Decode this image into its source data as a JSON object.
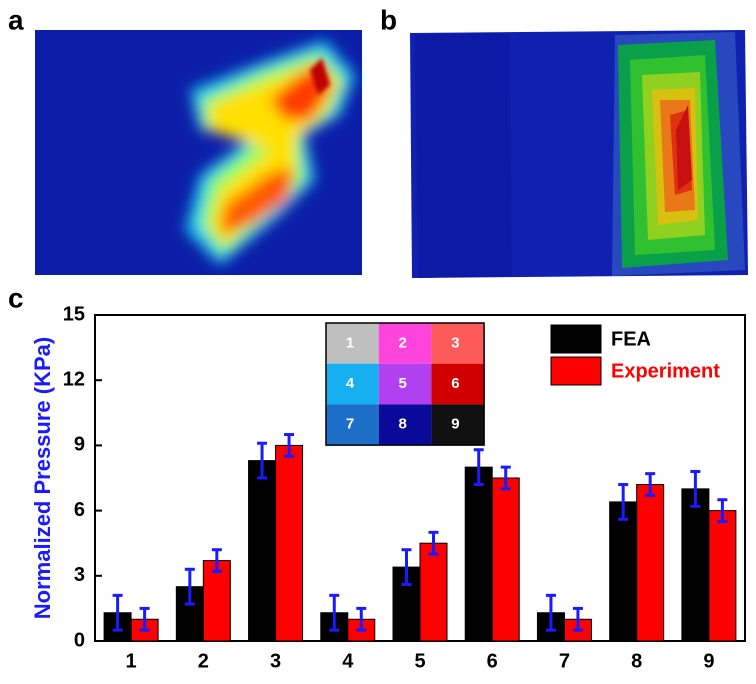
{
  "chart_data": {
    "type": "bar",
    "panel_labels": [
      "a",
      "b",
      "c"
    ],
    "ylabel": "Normalized Pressure (KPa)",
    "categories": [
      "1",
      "2",
      "3",
      "4",
      "5",
      "6",
      "7",
      "8",
      "9"
    ],
    "series": [
      {
        "name": "FEA",
        "color": "#000000",
        "values": [
          1.3,
          2.5,
          8.3,
          1.3,
          3.4,
          8.0,
          1.3,
          6.4,
          7.0
        ],
        "errors": [
          0.8,
          0.8,
          0.8,
          0.8,
          0.8,
          0.8,
          0.8,
          0.8,
          0.8
        ]
      },
      {
        "name": "Experiment",
        "color": "#ff0000",
        "values": [
          1.0,
          3.7,
          9.0,
          1.0,
          4.5,
          7.5,
          1.0,
          7.2,
          6.0
        ],
        "errors": [
          0.5,
          0.5,
          0.5,
          0.5,
          0.5,
          0.5,
          0.5,
          0.5,
          0.5
        ]
      }
    ],
    "error_color": "#1a1aff",
    "ylim": [
      0,
      15
    ],
    "yticks": [
      0,
      3,
      6,
      9,
      12,
      15
    ],
    "legend": "upper right",
    "inset": {
      "cells": [
        {
          "label": "1",
          "color": "#bfbfbf"
        },
        {
          "label": "2",
          "color": "#ff44dd"
        },
        {
          "label": "3",
          "color": "#ff5a5a"
        },
        {
          "label": "4",
          "color": "#16b0f0"
        },
        {
          "label": "5",
          "color": "#b040f0"
        },
        {
          "label": "6",
          "color": "#d00000"
        },
        {
          "label": "7",
          "color": "#1e6fc8"
        },
        {
          "label": "8",
          "color": "#0a0a9a"
        },
        {
          "label": "9",
          "color": "#111111"
        }
      ]
    }
  }
}
